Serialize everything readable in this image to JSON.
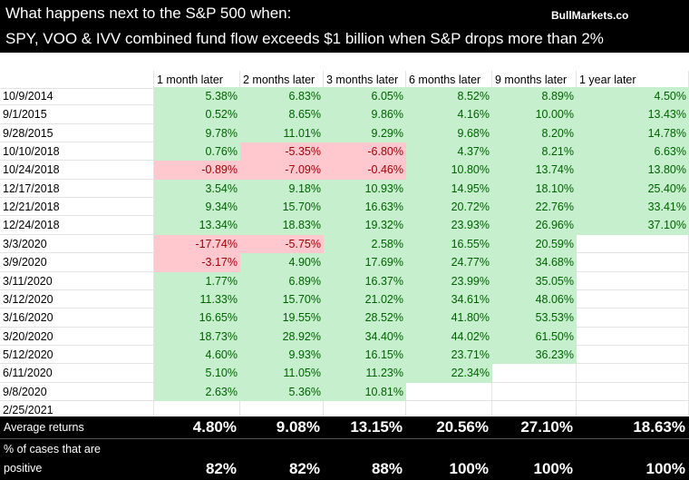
{
  "header": {
    "title": "What happens next to the S&P 500 when:",
    "subtitle": "SPY, VOO & IVV combined fund flow exceeds $1 billion when S&P drops more than 2%",
    "source": "BullMarkets.co"
  },
  "table": {
    "columns": [
      "1 month later",
      "2 months later",
      "3 months later",
      "6 months later",
      "9 months later",
      "1 year later"
    ],
    "rows": [
      {
        "date": "10/9/2014",
        "cells": [
          "5.38%",
          "6.83%",
          "6.05%",
          "8.52%",
          "8.89%",
          "4.50%"
        ]
      },
      {
        "date": "9/1/2015",
        "cells": [
          "0.52%",
          "8.65%",
          "9.86%",
          "4.16%",
          "10.00%",
          "13.43%"
        ]
      },
      {
        "date": "9/28/2015",
        "cells": [
          "9.78%",
          "11.01%",
          "9.29%",
          "9.68%",
          "8.20%",
          "14.78%"
        ]
      },
      {
        "date": "10/10/2018",
        "cells": [
          "0.76%",
          "-5.35%",
          "-6.80%",
          "4.37%",
          "8.21%",
          "6.63%"
        ]
      },
      {
        "date": "10/24/2018",
        "cells": [
          "-0.89%",
          "-7.09%",
          "-0.46%",
          "10.80%",
          "13.74%",
          "13.80%"
        ]
      },
      {
        "date": "12/17/2018",
        "cells": [
          "3.54%",
          "9.18%",
          "10.93%",
          "14.95%",
          "18.10%",
          "25.40%"
        ]
      },
      {
        "date": "12/21/2018",
        "cells": [
          "9.34%",
          "15.70%",
          "16.63%",
          "20.72%",
          "22.76%",
          "33.41%"
        ]
      },
      {
        "date": "12/24/2018",
        "cells": [
          "13.34%",
          "18.83%",
          "19.32%",
          "23.93%",
          "26.96%",
          "37.10%"
        ]
      },
      {
        "date": "3/3/2020",
        "cells": [
          "-17.74%",
          "-5.75%",
          "2.58%",
          "16.55%",
          "20.59%",
          null
        ]
      },
      {
        "date": "3/9/2020",
        "cells": [
          "-3.17%",
          "4.90%",
          "17.69%",
          "24.77%",
          "34.68%",
          null
        ]
      },
      {
        "date": "3/11/2020",
        "cells": [
          "1.77%",
          "6.89%",
          "16.37%",
          "23.99%",
          "35.05%",
          null
        ]
      },
      {
        "date": "3/12/2020",
        "cells": [
          "11.33%",
          "15.70%",
          "21.02%",
          "34.61%",
          "48.06%",
          null
        ]
      },
      {
        "date": "3/16/2020",
        "cells": [
          "16.65%",
          "19.55%",
          "28.52%",
          "41.80%",
          "53.53%",
          null
        ]
      },
      {
        "date": "3/20/2020",
        "cells": [
          "18.73%",
          "28.92%",
          "34.40%",
          "44.02%",
          "61.50%",
          null
        ]
      },
      {
        "date": "5/12/2020",
        "cells": [
          "4.60%",
          "9.93%",
          "16.15%",
          "23.71%",
          "36.23%",
          null
        ]
      },
      {
        "date": "6/11/2020",
        "cells": [
          "5.10%",
          "11.05%",
          "11.23%",
          "22.34%",
          null,
          null
        ]
      },
      {
        "date": "9/8/2020",
        "cells": [
          "2.63%",
          "5.36%",
          "10.81%",
          null,
          null,
          null
        ]
      },
      {
        "date": "2/25/2021",
        "cells": [
          null,
          null,
          null,
          null,
          null,
          null
        ]
      }
    ],
    "summary": [
      {
        "label": "Average returns",
        "cells": [
          "4.80%",
          "9.08%",
          "13.15%",
          "20.56%",
          "27.10%",
          "18.63%"
        ]
      },
      {
        "label": [
          "% of cases that are",
          "positive"
        ],
        "cells": [
          "82%",
          "82%",
          "88%",
          "100%",
          "100%",
          "100%"
        ]
      }
    ]
  }
}
